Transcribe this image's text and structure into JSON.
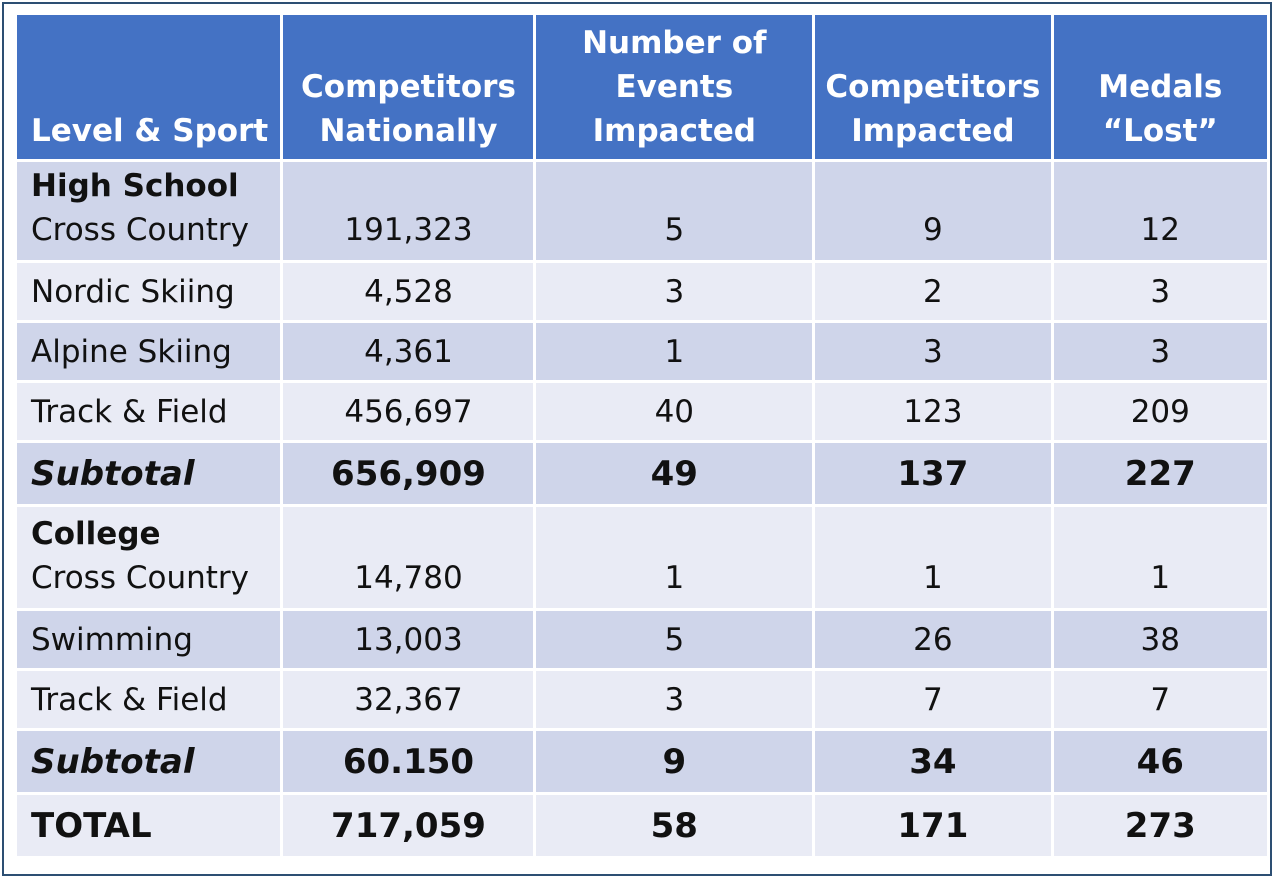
{
  "chart_data": {
    "type": "table",
    "columns": [
      "Level & Sport",
      "Competitors Nationally",
      "Number of Events Impacted",
      "Competitors Impacted",
      "Medals “Lost”"
    ],
    "groups": [
      {
        "name": "High School",
        "rows": [
          {
            "sport": "Cross Country",
            "competitors_nationally": "191,323",
            "events_impacted": "5",
            "competitors_impacted": "9",
            "medals_lost": "12"
          },
          {
            "sport": "Nordic Skiing",
            "competitors_nationally": "4,528",
            "events_impacted": "3",
            "competitors_impacted": "2",
            "medals_lost": "3"
          },
          {
            "sport": "Alpine Skiing",
            "competitors_nationally": "4,361",
            "events_impacted": "1",
            "competitors_impacted": "3",
            "medals_lost": "3"
          },
          {
            "sport": "Track & Field",
            "competitors_nationally": "456,697",
            "events_impacted": "40",
            "competitors_impacted": "123",
            "medals_lost": "209"
          }
        ],
        "subtotal": {
          "label": "Subtotal",
          "competitors_nationally": "656,909",
          "events_impacted": "49",
          "competitors_impacted": "137",
          "medals_lost": "227"
        }
      },
      {
        "name": "College",
        "rows": [
          {
            "sport": "Cross Country",
            "competitors_nationally": "14,780",
            "events_impacted": "1",
            "competitors_impacted": "1",
            "medals_lost": "1"
          },
          {
            "sport": "Swimming",
            "competitors_nationally": "13,003",
            "events_impacted": "5",
            "competitors_impacted": "26",
            "medals_lost": "38"
          },
          {
            "sport": "Track & Field",
            "competitors_nationally": "32,367",
            "events_impacted": "3",
            "competitors_impacted": "7",
            "medals_lost": "7"
          }
        ],
        "subtotal": {
          "label": "Subtotal",
          "competitors_nationally": "60.150",
          "events_impacted": "9",
          "competitors_impacted": "34",
          "medals_lost": "46"
        }
      }
    ],
    "total": {
      "label": "TOTAL",
      "competitors_nationally": "717,059",
      "events_impacted": "58",
      "competitors_impacted": "171",
      "medals_lost": "273"
    }
  },
  "header_lines": [
    [
      "Level & Sport"
    ],
    [
      "Competitors",
      "Nationally"
    ],
    [
      "Number of",
      "Events",
      "Impacted"
    ],
    [
      "Competitors",
      "Impacted"
    ],
    [
      "Medals",
      "“Lost”"
    ]
  ],
  "colors": {
    "header_bg": "#4472c4",
    "row_dark": "#cfd5ea",
    "row_light": "#e9ebf5",
    "border": "#2d4f73"
  }
}
